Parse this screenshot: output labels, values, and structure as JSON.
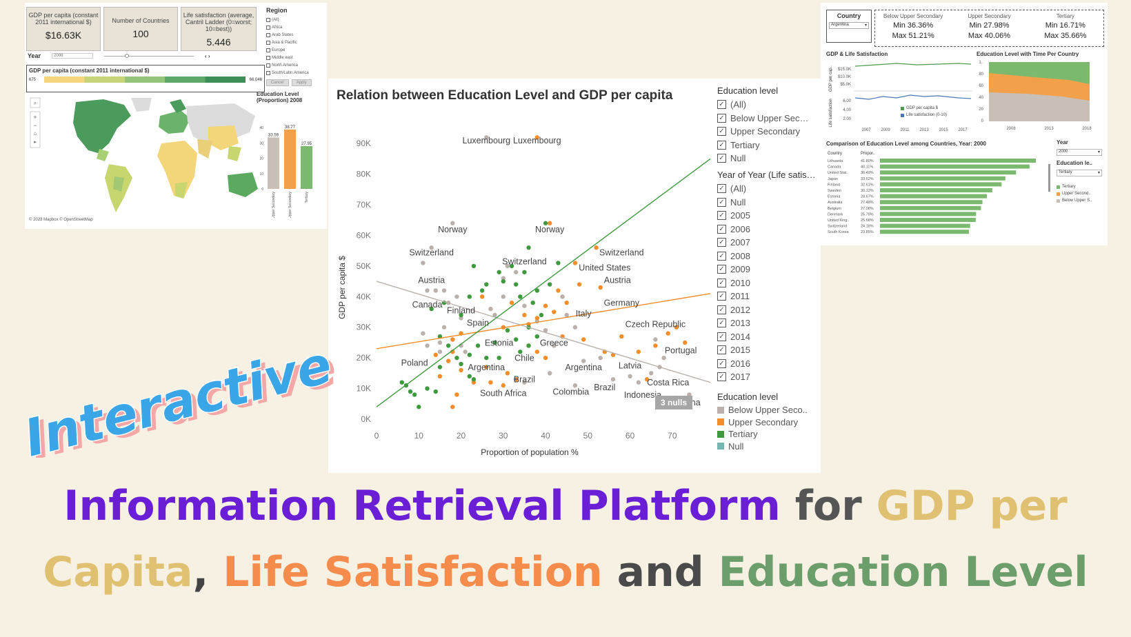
{
  "left_dashboard": {
    "kpis": [
      {
        "label": "GDP per capita (constant 2011 international $)",
        "value": "$16.63K"
      },
      {
        "label": "Number of Countries",
        "value": "100"
      },
      {
        "label": "Life satisfaction (average, Cantril Ladder (0=worst; 10=best))",
        "value": "5.446"
      }
    ],
    "region_title": "Region",
    "regions": [
      "(All)",
      "Africa",
      "Arab States",
      "Asia & Pacific",
      "Europe",
      "Middle east",
      "North America",
      "South/Latin America"
    ],
    "cancel_label": "Cancel",
    "apply_label": "Apply",
    "year_label": "Year",
    "year_value": "2008",
    "gdp_legend_title": "GDP per capita  (constant 2011 international $)",
    "gdp_min": "675",
    "gdp_max": "66,046",
    "attribution": "© 2023 Mapbox  © OpenStreetMap",
    "edu_title": "Education Level (Proportion) 2008",
    "edu_bars": {
      "labels": [
        "Below Upper Secondary",
        "Upper Secondary",
        "Tertiary"
      ],
      "values": [
        33.59,
        38.77,
        27.95
      ],
      "colors": [
        "#c8bfb6",
        "#f2a04a",
        "#7bba6e"
      ],
      "ticks": [
        "40",
        "30",
        "20",
        "10",
        "0"
      ]
    }
  },
  "center_chart": {
    "title": "Relation between Education Level and GDP per capita",
    "nulls_badge": "3 nulls",
    "legend_edu_title": "Education level",
    "legend_edu_items": [
      "(All)",
      "Below Upper Sec…",
      "Upper Secondary",
      "Tertiary",
      "Null"
    ],
    "legend_year_title": "Year of Year (Life satis…",
    "legend_year_items": [
      "(All)",
      "Null",
      "2005",
      "2006",
      "2007",
      "2008",
      "2009",
      "2010",
      "2011",
      "2012",
      "2013",
      "2014",
      "2015",
      "2016",
      "2017"
    ],
    "legend_color_title": "Education level",
    "legend_color_items": [
      {
        "label": "Below Upper Seco..",
        "color": "#bab0ac"
      },
      {
        "label": "Upper Secondary",
        "color": "#f28e2b"
      },
      {
        "label": "Tertiary",
        "color": "#3f9a3f"
      },
      {
        "label": "Null",
        "color": "#76b7b2"
      }
    ]
  },
  "chart_data": {
    "type": "scatter",
    "xlabel": "Proportion of population %",
    "ylabel": "GDP per capita $",
    "xlim": [
      0,
      79
    ],
    "ylim": [
      0,
      95000
    ],
    "xticks": [
      0,
      10,
      20,
      30,
      40,
      50,
      60,
      70
    ],
    "yticks": [
      0,
      10000,
      20000,
      30000,
      40000,
      50000,
      60000,
      70000,
      80000,
      90000
    ],
    "ytick_labels": [
      "0K",
      "10K",
      "20K",
      "30K",
      "40K",
      "50K",
      "60K",
      "70K",
      "80K",
      "90K"
    ],
    "colors": {
      "below": "#bab0ac",
      "upper": "#f28e2b",
      "tertiary": "#3f9a3f"
    },
    "series": [
      {
        "name": "Below Upper Secondary",
        "points": [
          [
            26,
            92000
          ],
          [
            18,
            64000
          ],
          [
            13,
            56000
          ],
          [
            11,
            51000
          ],
          [
            12,
            42000
          ],
          [
            14,
            42000
          ],
          [
            16,
            42000
          ],
          [
            17,
            38000
          ],
          [
            19,
            40000
          ],
          [
            20,
            33000
          ],
          [
            11,
            28000
          ],
          [
            12,
            24000
          ],
          [
            15,
            22000
          ],
          [
            15,
            25000
          ],
          [
            18,
            26000
          ],
          [
            16,
            30000
          ],
          [
            20,
            24000
          ],
          [
            21,
            22000
          ],
          [
            27,
            36000
          ],
          [
            28,
            34000
          ],
          [
            30,
            40000
          ],
          [
            30,
            46000
          ],
          [
            31,
            50000
          ],
          [
            33,
            48000
          ],
          [
            35,
            37000
          ],
          [
            38,
            32000
          ],
          [
            40,
            29000
          ],
          [
            42,
            24000
          ],
          [
            44,
            40000
          ],
          [
            45,
            34000
          ],
          [
            47,
            30000
          ],
          [
            49,
            19000
          ],
          [
            53,
            20000
          ],
          [
            56,
            13000
          ],
          [
            60,
            14000
          ],
          [
            62,
            12000
          ],
          [
            65,
            15000
          ],
          [
            66,
            26000
          ],
          [
            67,
            17000
          ],
          [
            68,
            20000
          ],
          [
            71,
            7000
          ],
          [
            74,
            8000
          ],
          [
            41,
            15000
          ],
          [
            47,
            11000
          ],
          [
            35,
            12000
          ]
        ]
      },
      {
        "name": "Upper Secondary",
        "points": [
          [
            38,
            92000
          ],
          [
            41,
            64000
          ],
          [
            52,
            56000
          ],
          [
            47,
            51000
          ],
          [
            53,
            43000
          ],
          [
            48,
            44000
          ],
          [
            43,
            42000
          ],
          [
            45,
            38000
          ],
          [
            40,
            37000
          ],
          [
            42,
            35000
          ],
          [
            38,
            33000
          ],
          [
            36,
            31000
          ],
          [
            32,
            38000
          ],
          [
            35,
            34000
          ],
          [
            30,
            30000
          ],
          [
            20,
            28000
          ],
          [
            18,
            26000
          ],
          [
            18,
            22000
          ],
          [
            17,
            19000
          ],
          [
            15,
            14000
          ],
          [
            14,
            21000
          ],
          [
            19,
            8000
          ],
          [
            20,
            16000
          ],
          [
            23,
            12000
          ],
          [
            26,
            17000
          ],
          [
            27,
            12000
          ],
          [
            30,
            11000
          ],
          [
            31,
            15000
          ],
          [
            33,
            13000
          ],
          [
            36,
            24000
          ],
          [
            38,
            22000
          ],
          [
            40,
            20000
          ],
          [
            44,
            27000
          ],
          [
            49,
            26000
          ],
          [
            54,
            22000
          ],
          [
            56,
            21000
          ],
          [
            58,
            27000
          ],
          [
            62,
            22000
          ],
          [
            64,
            13000
          ],
          [
            66,
            24000
          ],
          [
            69,
            28000
          ],
          [
            71,
            30000
          ],
          [
            73,
            25000
          ],
          [
            18,
            4000
          ],
          [
            25,
            40000
          ]
        ]
      },
      {
        "name": "Tertiary",
        "points": [
          [
            40,
            64000
          ],
          [
            36,
            56000
          ],
          [
            32,
            50000
          ],
          [
            29,
            48000
          ],
          [
            26,
            44000
          ],
          [
            25,
            42000
          ],
          [
            30,
            45000
          ],
          [
            33,
            44000
          ],
          [
            34,
            40000
          ],
          [
            37,
            38000
          ],
          [
            38,
            42000
          ],
          [
            35,
            48000
          ],
          [
            41,
            44000
          ],
          [
            43,
            51000
          ],
          [
            23,
            50000
          ],
          [
            22,
            40000
          ],
          [
            20,
            34000
          ],
          [
            16,
            38000
          ],
          [
            13,
            36000
          ],
          [
            15,
            27000
          ],
          [
            17,
            24000
          ],
          [
            19,
            20000
          ],
          [
            20,
            18000
          ],
          [
            22,
            21000
          ],
          [
            22,
            14000
          ],
          [
            23,
            13000
          ],
          [
            24,
            24000
          ],
          [
            26,
            20000
          ],
          [
            28,
            25000
          ],
          [
            29,
            20000
          ],
          [
            31,
            29000
          ],
          [
            33,
            26000
          ],
          [
            34,
            22000
          ],
          [
            36,
            30000
          ],
          [
            39,
            34000
          ],
          [
            7,
            11000
          ],
          [
            8,
            9000
          ],
          [
            9,
            8000
          ],
          [
            10,
            4000
          ],
          [
            6,
            12000
          ],
          [
            14,
            9000
          ],
          [
            15,
            17000
          ],
          [
            12,
            10000
          ],
          [
            38,
            27000
          ],
          [
            36,
            24000
          ]
        ]
      }
    ],
    "trendlines": [
      {
        "name": "Below Upper Secondary",
        "x": [
          0,
          79
        ],
        "y": [
          45000,
          12000
        ]
      },
      {
        "name": "Upper Secondary",
        "x": [
          0,
          79
        ],
        "y": [
          23000,
          41000
        ]
      },
      {
        "name": "Tertiary",
        "x": [
          0,
          79
        ],
        "y": [
          4000,
          85000
        ]
      }
    ],
    "annotations": [
      {
        "text": "Luxembourg",
        "x": 26,
        "y": 90000
      },
      {
        "text": "Luxembourg",
        "x": 38,
        "y": 90000
      },
      {
        "text": "Norway",
        "x": 18,
        "y": 61000
      },
      {
        "text": "Norway",
        "x": 41,
        "y": 61000
      },
      {
        "text": "Switzerland",
        "x": 13,
        "y": 53500
      },
      {
        "text": "Switzerland",
        "x": 35,
        "y": 50500
      },
      {
        "text": "Switzerland",
        "x": 58,
        "y": 53500
      },
      {
        "text": "United States",
        "x": 54,
        "y": 48500
      },
      {
        "text": "Austria",
        "x": 13,
        "y": 44500
      },
      {
        "text": "Austria",
        "x": 57,
        "y": 44500
      },
      {
        "text": "Canada",
        "x": 12,
        "y": 36500
      },
      {
        "text": "Finland",
        "x": 20,
        "y": 34500
      },
      {
        "text": "Germany",
        "x": 58,
        "y": 37000
      },
      {
        "text": "Italy",
        "x": 49,
        "y": 33500
      },
      {
        "text": "Spain",
        "x": 24,
        "y": 30500
      },
      {
        "text": "Czech Republic",
        "x": 66,
        "y": 30000
      },
      {
        "text": "Estonia",
        "x": 29,
        "y": 24000
      },
      {
        "text": "Greece",
        "x": 42,
        "y": 24000
      },
      {
        "text": "Portugal",
        "x": 72,
        "y": 21500
      },
      {
        "text": "Chile",
        "x": 35,
        "y": 19000
      },
      {
        "text": "Poland",
        "x": 9,
        "y": 17500
      },
      {
        "text": "Argentina",
        "x": 26,
        "y": 16000
      },
      {
        "text": "Argentina",
        "x": 49,
        "y": 16000
      },
      {
        "text": "Latvia",
        "x": 60,
        "y": 16500
      },
      {
        "text": "Brazil",
        "x": 35,
        "y": 12000
      },
      {
        "text": "Costa Rica",
        "x": 69,
        "y": 11000
      },
      {
        "text": "Brazil",
        "x": 54,
        "y": 9500
      },
      {
        "text": "South Africa",
        "x": 30,
        "y": 7500
      },
      {
        "text": "Colombia",
        "x": 46,
        "y": 8000
      },
      {
        "text": "Indonesia",
        "x": 63,
        "y": 7000
      },
      {
        "text": "China",
        "x": 74,
        "y": 4500
      }
    ]
  },
  "right_dashboard": {
    "country_label": "Country",
    "country_value": "Argentina",
    "stats": [
      {
        "head": "Below Upper Secondary",
        "min": "Min 36.36%",
        "max": "Max 51.21%"
      },
      {
        "head": "Upper Secondary",
        "min": "Min 27.98%",
        "max": "Max 40.06%"
      },
      {
        "head": "Tertiary",
        "min": "Min 16.71%",
        "max": "Max 35.66%"
      }
    ],
    "gdp_life_title": "GDP & Life Satisfaction",
    "gdp_axis_label": "GDP per cap..",
    "life_axis_label": "Life satisfaction",
    "gdp_ticks": [
      "$15.0K",
      "$10.0K",
      "$5.0K"
    ],
    "life_ticks": [
      "6.00",
      "4.00",
      "2.00"
    ],
    "gdp_life_xticks": [
      "2007",
      "2009",
      "2011",
      "2013",
      "2015",
      "2017"
    ],
    "gdp_life_legend": [
      {
        "label": "GDP per capita $",
        "color": "#4e9a4e"
      },
      {
        "label": "Life satisfaction (0-10)",
        "color": "#4a78b5"
      }
    ],
    "edu_time_title": "Education Level with Time Per Country",
    "edu_time_yticks": [
      "1..",
      "80",
      "60",
      "40",
      "20",
      "0"
    ],
    "edu_time_xticks": [
      "2008",
      "2013",
      "2018"
    ],
    "comparison_title": "Comparison of Education Level among Countries, Year: 2000",
    "comparison_headers": [
      "Country",
      "Propor.."
    ],
    "comparison_rows": [
      {
        "country": "Lithuania",
        "value": "41.80%",
        "num": 41.8
      },
      {
        "country": "Canada",
        "value": "40.11%",
        "num": 40.11
      },
      {
        "country": "United Stat..",
        "value": "36.49%",
        "num": 36.49
      },
      {
        "country": "Japan",
        "value": "33.62%",
        "num": 33.62
      },
      {
        "country": "Finland",
        "value": "32.61%",
        "num": 32.61
      },
      {
        "country": "Sweden",
        "value": "30.12%",
        "num": 30.12
      },
      {
        "country": "Estonia",
        "value": "28.67%",
        "num": 28.67
      },
      {
        "country": "Australia",
        "value": "27.48%",
        "num": 27.48
      },
      {
        "country": "Belgium",
        "value": "27.08%",
        "num": 27.08
      },
      {
        "country": "Denmark",
        "value": "25.78%",
        "num": 25.78
      },
      {
        "country": "United King..",
        "value": "25.68%",
        "num": 25.68
      },
      {
        "country": "Switzerland",
        "value": "24.18%",
        "num": 24.18
      },
      {
        "country": "South Korea",
        "value": "23.85%",
        "num": 23.85
      }
    ],
    "year_label": "Year",
    "year_value": "2000",
    "edu_filter_label": "Education le..",
    "edu_filter_value": "Tertiary",
    "edu_legend": [
      {
        "label": "Tertiary",
        "color": "#7bba6e"
      },
      {
        "label": "Upper Second..",
        "color": "#f2a04a"
      },
      {
        "label": "Below Upper S..",
        "color": "#c8bfb6"
      }
    ]
  },
  "overlay_text": "Interactive :)",
  "headline": {
    "parts1": [
      {
        "text": "Information Retrieval Platform",
        "color": "#6a1fd6"
      },
      {
        "text": " for ",
        "color": "#555555"
      },
      {
        "text": "GDP per",
        "color": "#e0c071"
      }
    ],
    "parts2": [
      {
        "text": "Capita",
        "color": "#e0c071"
      },
      {
        "text": ", ",
        "color": "#444444"
      },
      {
        "text": "Life Satisfaction",
        "color": "#f58c4c"
      },
      {
        "text": " and ",
        "color": "#4a4a4a"
      },
      {
        "text": "Education Level",
        "color": "#6c9e6c"
      }
    ]
  }
}
